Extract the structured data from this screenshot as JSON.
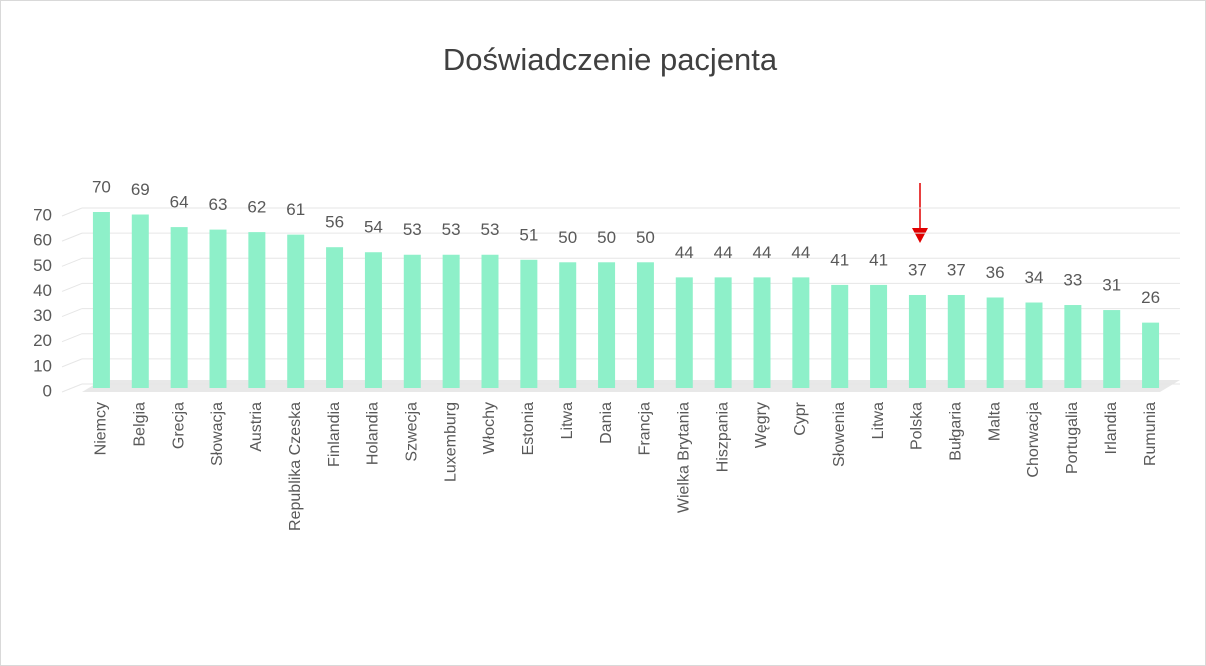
{
  "chart_data": {
    "type": "bar",
    "title": "Doświadczenie pacjenta",
    "categories": [
      "Niemcy",
      "Belgia",
      "Grecja",
      "Słowacja",
      "Austria",
      "Republika Czeska",
      "Finlandia",
      "Holandia",
      "Szwecja",
      "Luxemburg",
      "Włochy",
      "Estonia",
      "Litwa",
      "Dania",
      "Francja",
      "Wielka Brytania",
      "Hiszpania",
      "Węgry",
      "Cypr",
      "Słowenia",
      "Litwa",
      "Polska",
      "Bułgaria",
      "Malta",
      "Chorwacja",
      "Portugalia",
      "Irlandia",
      "Rumunia"
    ],
    "values": [
      70,
      69,
      64,
      63,
      62,
      61,
      56,
      54,
      53,
      53,
      53,
      51,
      50,
      50,
      50,
      44,
      44,
      44,
      44,
      41,
      41,
      37,
      37,
      36,
      34,
      33,
      31,
      26
    ],
    "color": "#8ef0c9",
    "ylim": [
      0,
      70
    ],
    "yticks": [
      0,
      10,
      20,
      30,
      40,
      50,
      60,
      70
    ],
    "grid": true
  }
}
